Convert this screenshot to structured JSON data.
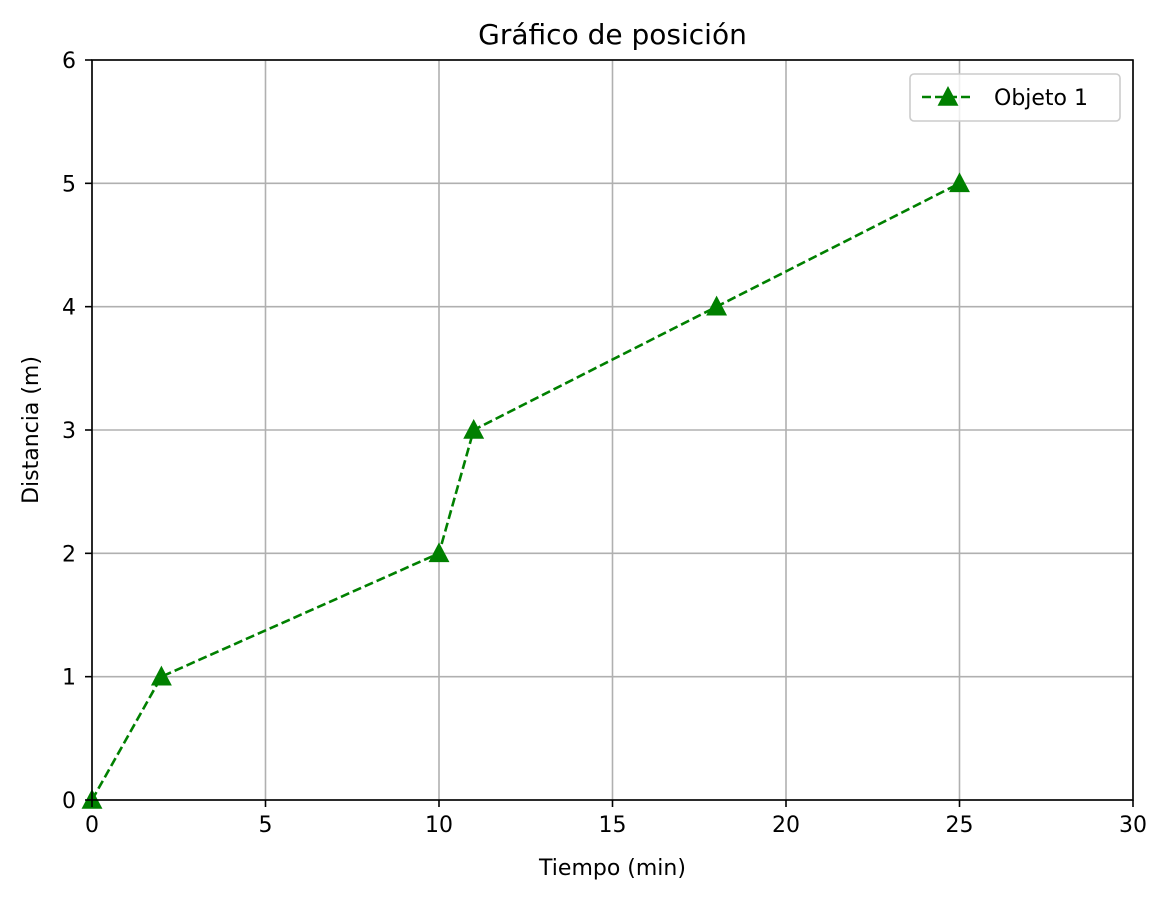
{
  "chart_data": {
    "type": "line",
    "title": "Gráfico de posición",
    "xlabel": "Tiempo (min)",
    "ylabel": "Distancia (m)",
    "xlim": [
      0,
      30
    ],
    "ylim": [
      0,
      6
    ],
    "xticks": [
      0,
      5,
      10,
      15,
      20,
      25,
      30
    ],
    "yticks": [
      0,
      1,
      2,
      3,
      4,
      5,
      6
    ],
    "grid": true,
    "legend_position": "top-right",
    "series": [
      {
        "name": "Objeto 1",
        "color": "#008000",
        "line_style": "dashed",
        "marker": "triangle-up",
        "x": [
          0,
          2,
          10,
          11,
          18,
          25
        ],
        "y": [
          0,
          1,
          2,
          3,
          4,
          5
        ]
      }
    ]
  }
}
